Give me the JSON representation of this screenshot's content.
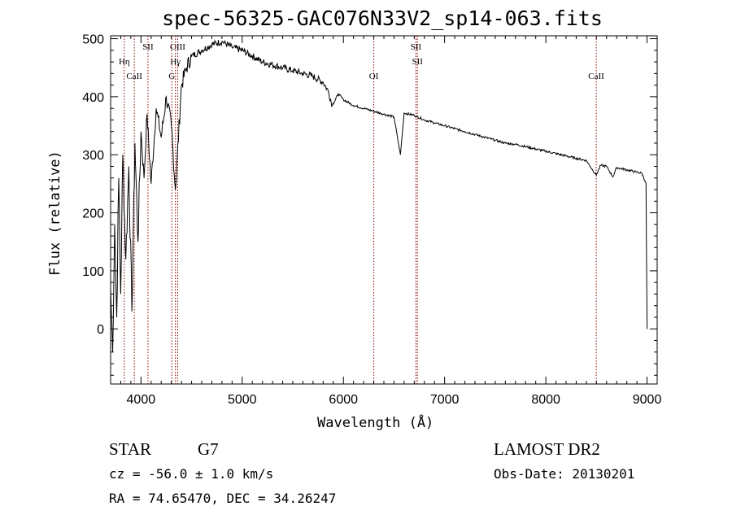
{
  "title": "spec-56325-GAC076N33V2_sp14-063.fits",
  "info": {
    "object_type": "STAR",
    "object_class": "G7",
    "survey": "LAMOST DR2",
    "cz": "cz = -56.0 ± 1.0 km/s",
    "obs_date": "Obs-Date: 20130201",
    "radec": "RA =  74.65470, DEC =  34.26247"
  },
  "colors": {
    "line": "#000000",
    "marker": "#8b0000",
    "background": "#ffffff"
  },
  "chart_data": {
    "type": "line",
    "title": "spec-56325-GAC076N33V2_sp14-063.fits",
    "xlabel": "Wavelength (Å)",
    "ylabel": "Flux (relative)",
    "xlim": [
      3700,
      9100
    ],
    "ylim": [
      -95,
      505
    ],
    "x_ticks": [
      4000,
      5000,
      6000,
      7000,
      8000,
      9000
    ],
    "y_ticks": [
      0,
      100,
      200,
      300,
      400,
      500
    ],
    "grid": false,
    "series": [
      {
        "name": "flux",
        "x": [
          3700,
          3720,
          3740,
          3760,
          3780,
          3800,
          3820,
          3850,
          3880,
          3910,
          3940,
          3970,
          4000,
          4030,
          4060,
          4100,
          4150,
          4200,
          4250,
          4300,
          4340,
          4400,
          4450,
          4500,
          4600,
          4700,
          4800,
          4900,
          5000,
          5100,
          5200,
          5300,
          5400,
          5500,
          5600,
          5700,
          5800,
          5850,
          5890,
          5950,
          6000,
          6100,
          6200,
          6300,
          6400,
          6500,
          6563,
          6600,
          6700,
          6800,
          6900,
          7000,
          7100,
          7200,
          7300,
          7400,
          7500,
          7600,
          7700,
          7800,
          7900,
          8000,
          8100,
          8200,
          8300,
          8400,
          8498,
          8542,
          8600,
          8662,
          8700,
          8800,
          8900,
          8950,
          8990,
          9000
        ],
        "y": [
          70,
          -40,
          180,
          20,
          260,
          60,
          300,
          120,
          280,
          30,
          320,
          150,
          340,
          260,
          370,
          250,
          380,
          330,
          400,
          350,
          240,
          420,
          450,
          470,
          480,
          490,
          495,
          485,
          480,
          470,
          460,
          455,
          450,
          445,
          440,
          435,
          425,
          410,
          385,
          405,
          395,
          385,
          380,
          375,
          370,
          365,
          300,
          372,
          368,
          360,
          355,
          350,
          345,
          340,
          335,
          330,
          325,
          320,
          318,
          314,
          310,
          306,
          302,
          298,
          294,
          290,
          265,
          282,
          280,
          262,
          278,
          274,
          270,
          268,
          250,
          0
        ]
      }
    ],
    "line_markers": [
      {
        "name": "CaII",
        "wavelength": 3934,
        "label_level": 2
      },
      {
        "name": "Hη",
        "wavelength": 3835,
        "label_level": 1
      },
      {
        "name": "SII",
        "wavelength": 4069,
        "label_level": 0
      },
      {
        "name": "OIII",
        "wavelength": 4363,
        "label_level": 0
      },
      {
        "name": "Hγ",
        "wavelength": 4340,
        "label_level": 1
      },
      {
        "name": "G",
        "wavelength": 4305,
        "label_level": 2
      },
      {
        "name": "OI",
        "wavelength": 6300,
        "label_level": 2
      },
      {
        "name": "SII",
        "wavelength": 6716,
        "label_level": 0
      },
      {
        "name": "SII",
        "wavelength": 6731,
        "label_level": 1
      },
      {
        "name": "CaII",
        "wavelength": 8498,
        "label_level": 2
      }
    ]
  }
}
